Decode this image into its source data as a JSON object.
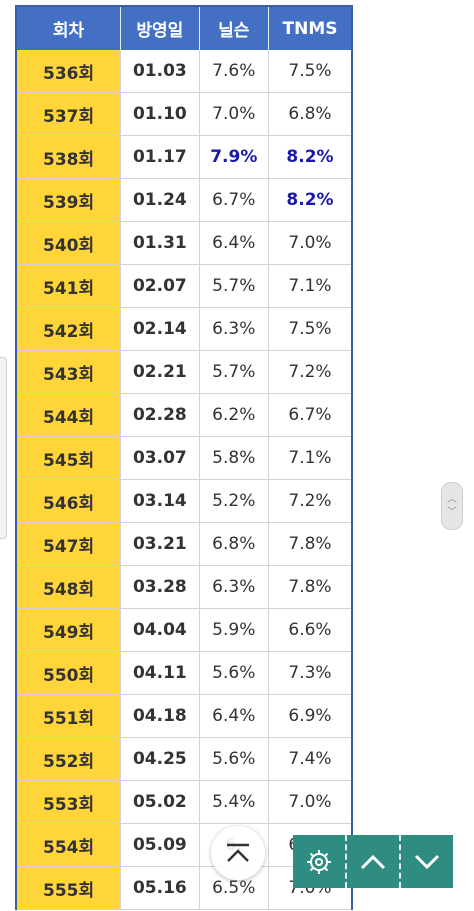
{
  "table": {
    "headers": [
      "회차",
      "방영일",
      "닐슨",
      "TNMS"
    ],
    "rows": [
      {
        "episode": "536회",
        "date": "01.03",
        "nielsen": "7.6%",
        "tnms": "7.5%",
        "hl_n": false,
        "hl_t": false
      },
      {
        "episode": "537회",
        "date": "01.10",
        "nielsen": "7.0%",
        "tnms": "6.8%",
        "hl_n": false,
        "hl_t": false
      },
      {
        "episode": "538회",
        "date": "01.17",
        "nielsen": "7.9%",
        "tnms": "8.2%",
        "hl_n": true,
        "hl_t": true
      },
      {
        "episode": "539회",
        "date": "01.24",
        "nielsen": "6.7%",
        "tnms": "8.2%",
        "hl_n": false,
        "hl_t": true
      },
      {
        "episode": "540회",
        "date": "01.31",
        "nielsen": "6.4%",
        "tnms": "7.0%",
        "hl_n": false,
        "hl_t": false
      },
      {
        "episode": "541회",
        "date": "02.07",
        "nielsen": "5.7%",
        "tnms": "7.1%",
        "hl_n": false,
        "hl_t": false
      },
      {
        "episode": "542회",
        "date": "02.14",
        "nielsen": "6.3%",
        "tnms": "7.5%",
        "hl_n": false,
        "hl_t": false
      },
      {
        "episode": "543회",
        "date": "02.21",
        "nielsen": "5.7%",
        "tnms": "7.2%",
        "hl_n": false,
        "hl_t": false
      },
      {
        "episode": "544회",
        "date": "02.28",
        "nielsen": "6.2%",
        "tnms": "6.7%",
        "hl_n": false,
        "hl_t": false
      },
      {
        "episode": "545회",
        "date": "03.07",
        "nielsen": "5.8%",
        "tnms": "7.1%",
        "hl_n": false,
        "hl_t": false
      },
      {
        "episode": "546회",
        "date": "03.14",
        "nielsen": "5.2%",
        "tnms": "7.2%",
        "hl_n": false,
        "hl_t": false
      },
      {
        "episode": "547회",
        "date": "03.21",
        "nielsen": "6.8%",
        "tnms": "7.8%",
        "hl_n": false,
        "hl_t": false
      },
      {
        "episode": "548회",
        "date": "03.28",
        "nielsen": "6.3%",
        "tnms": "7.8%",
        "hl_n": false,
        "hl_t": false
      },
      {
        "episode": "549회",
        "date": "04.04",
        "nielsen": "5.9%",
        "tnms": "6.6%",
        "hl_n": false,
        "hl_t": false
      },
      {
        "episode": "550회",
        "date": "04.11",
        "nielsen": "5.6%",
        "tnms": "7.3%",
        "hl_n": false,
        "hl_t": false
      },
      {
        "episode": "551회",
        "date": "04.18",
        "nielsen": "6.4%",
        "tnms": "6.9%",
        "hl_n": false,
        "hl_t": false
      },
      {
        "episode": "552회",
        "date": "04.25",
        "nielsen": "5.6%",
        "tnms": "7.4%",
        "hl_n": false,
        "hl_t": false
      },
      {
        "episode": "553회",
        "date": "05.02",
        "nielsen": "5.4%",
        "tnms": "7.0%",
        "hl_n": false,
        "hl_t": false
      },
      {
        "episode": "554회",
        "date": "05.09",
        "nielsen": "6.",
        "tnms": "6.0%",
        "hl_n": false,
        "hl_t": false
      },
      {
        "episode": "555회",
        "date": "05.16",
        "nielsen": "6.5%",
        "tnms": "7.0%",
        "hl_n": false,
        "hl_t": false
      }
    ]
  },
  "colors": {
    "header_bg": "#4470c4",
    "episode_bg": "#ffd53a",
    "highlight_text": "#1a1aa8",
    "toolbar_bg": "#2e8c80"
  },
  "floating": {
    "scroll_top_icon": "chevron-up-bar-icon",
    "settings_icon": "gear-icon",
    "prev_icon": "chevron-up-icon",
    "next_icon": "chevron-down-icon"
  }
}
